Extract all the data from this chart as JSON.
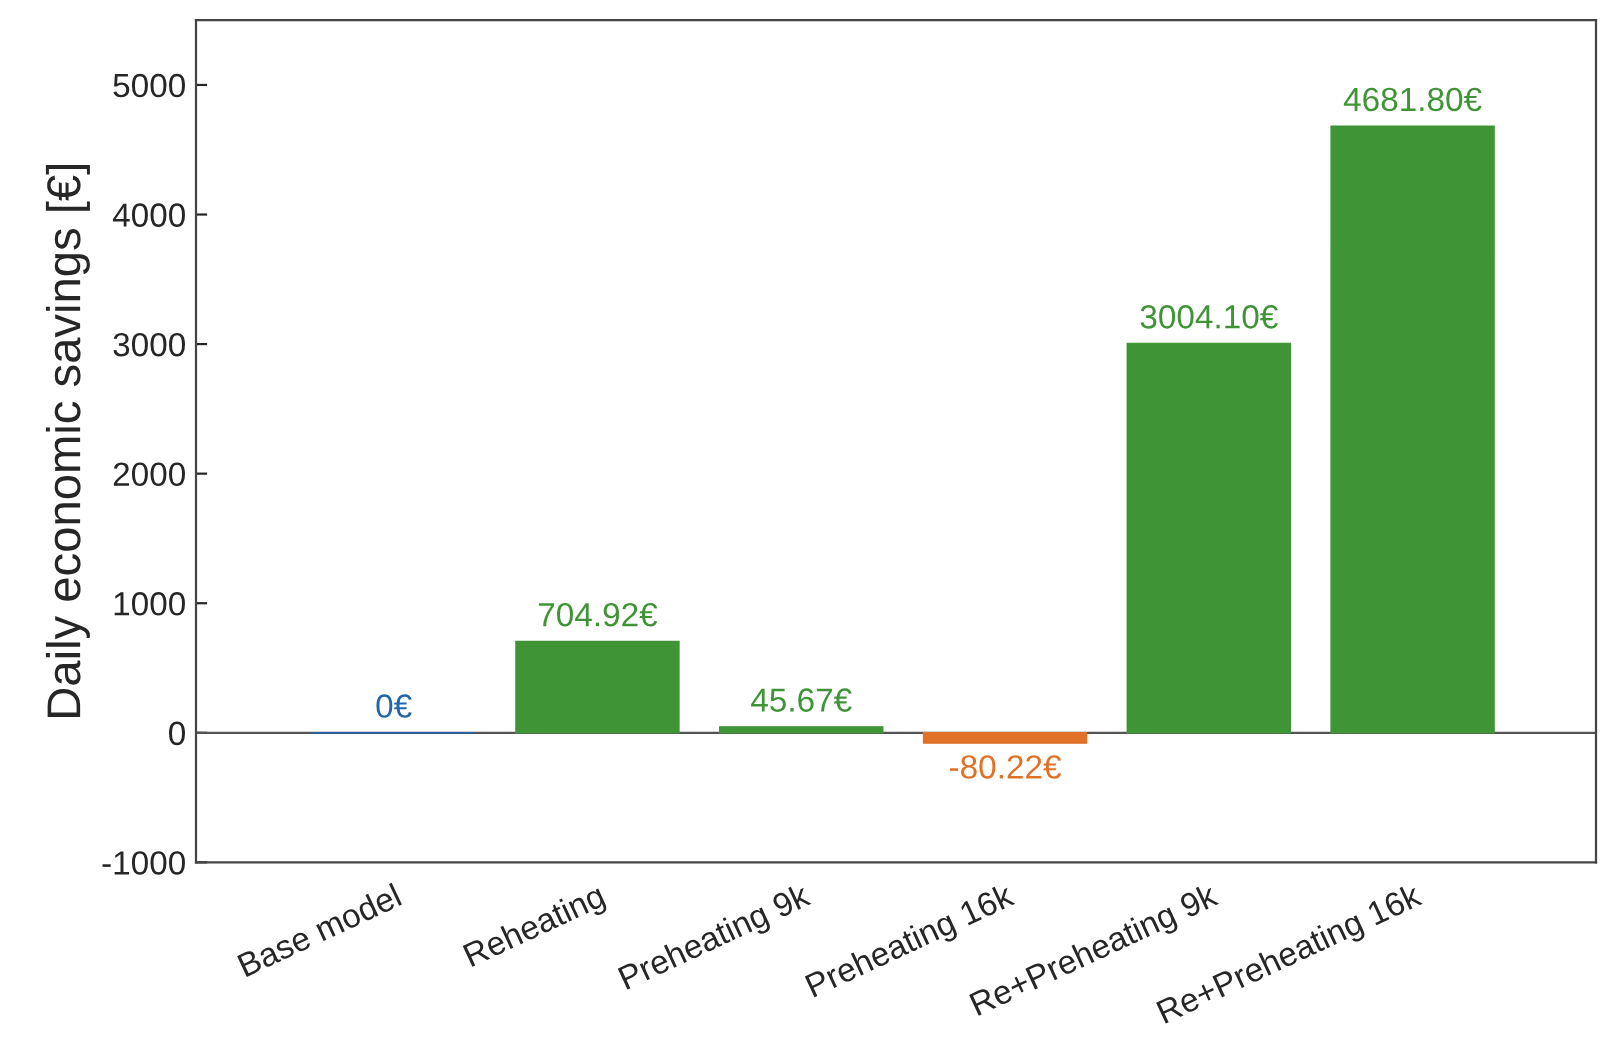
{
  "chart_data": {
    "type": "bar",
    "ylabel": "Daily economic savings [€]",
    "categories": [
      "Base model",
      "Reheating",
      "Preheating 9k",
      "Preheating 16k",
      "Re+Preheating 9k",
      "Re+Preheating 16k"
    ],
    "values": [
      0,
      704.92,
      45.67,
      -80.22,
      3004.1,
      4681.8
    ],
    "colors": [
      "#2166ac",
      "#3f9436",
      "#3f9436",
      "#e07127",
      "#3f9436",
      "#3f9436"
    ],
    "value_labels": [
      "0€",
      "704.92€",
      "45.67€",
      "-80.22€",
      "3004.10€",
      "4681.80€"
    ],
    "ylim": [
      -1000,
      5500
    ],
    "yticks": [
      -1000,
      0,
      1000,
      2000,
      3000,
      4000,
      5000
    ],
    "ref_lines": [
      {
        "axis": "y",
        "value": 0,
        "color": "#555555"
      }
    ],
    "grid": false,
    "legend": false
  }
}
